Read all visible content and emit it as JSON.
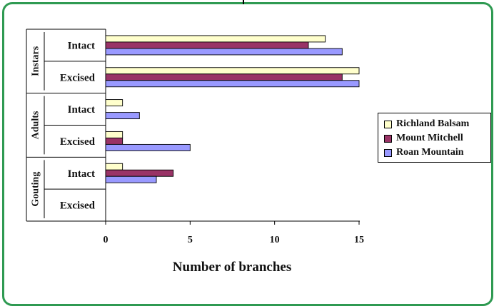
{
  "chart_data": {
    "type": "bar",
    "orientation": "horizontal",
    "groups": [
      {
        "label": "Instars",
        "subgroups": [
          "Intact",
          "Excised"
        ]
      },
      {
        "label": "Adults",
        "subgroups": [
          "Intact",
          "Excised"
        ]
      },
      {
        "label": "Gouting",
        "subgroups": [
          "Intact",
          "Excised"
        ]
      }
    ],
    "categories": [
      "Instars Intact",
      "Instars Excised",
      "Adults Intact",
      "Adults Excised",
      "Gouting Intact",
      "Gouting Excised"
    ],
    "series": [
      {
        "name": "Richland Balsam",
        "color": "#ffffcc",
        "values": [
          13,
          15,
          1,
          1,
          1,
          0
        ]
      },
      {
        "name": "Mount Mitchell",
        "color": "#993366",
        "values": [
          12,
          14,
          0,
          1,
          4,
          0
        ]
      },
      {
        "name": "Roan Mountain",
        "color": "#9999ff",
        "values": [
          14,
          15,
          2,
          5,
          3,
          0
        ]
      }
    ],
    "xlabel": "Number of branches",
    "xlim": [
      0,
      15
    ],
    "xticks": [
      0,
      5,
      10,
      15
    ],
    "grid": false,
    "legend": "right"
  }
}
